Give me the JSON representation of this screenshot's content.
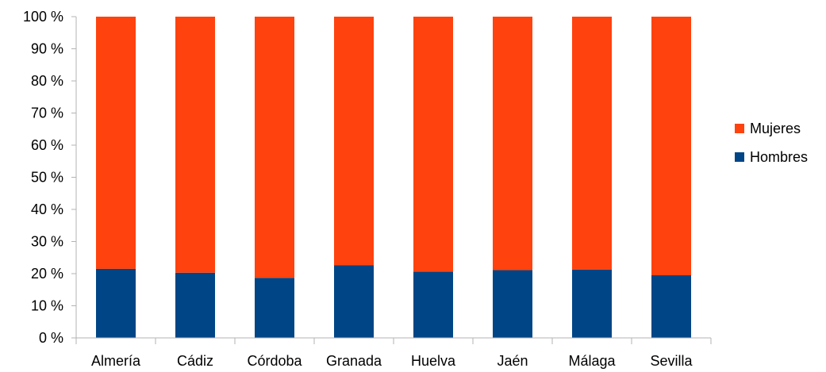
{
  "chart_data": {
    "type": "bar",
    "stacked": true,
    "percent_stacked": true,
    "title": "",
    "xlabel": "",
    "ylabel": "",
    "categories": [
      "Almería",
      "Cádiz",
      "Córdoba",
      "Granada",
      "Huelva",
      "Jaén",
      "Málaga",
      "Sevilla"
    ],
    "series": [
      {
        "name": "Hombres",
        "color": "#004586",
        "values": [
          21.5,
          20.3,
          18.7,
          22.6,
          20.6,
          21.1,
          21.3,
          19.5
        ]
      },
      {
        "name": "Mujeres",
        "color": "#ff420e",
        "values": [
          78.5,
          79.7,
          81.3,
          77.4,
          79.4,
          78.9,
          78.7,
          80.5
        ]
      }
    ],
    "ylim": [
      0,
      100
    ],
    "yticks": [
      0,
      10,
      20,
      30,
      40,
      50,
      60,
      70,
      80,
      90,
      100
    ],
    "ytick_labels": [
      "0 %",
      "10 %",
      "20 %",
      "30 %",
      "40 %",
      "50 %",
      "60 %",
      "70 %",
      "80 %",
      "90 %",
      "100 %"
    ],
    "grid": false,
    "legend": {
      "position": "right",
      "order": [
        "Mujeres",
        "Hombres"
      ]
    }
  }
}
